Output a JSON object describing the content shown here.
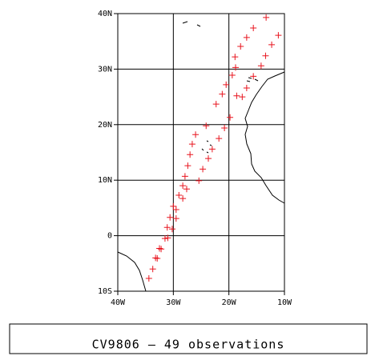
{
  "chart_data": {
    "type": "scatter",
    "title": "CV9806 — 49 observations",
    "xlim": [
      -40,
      -10
    ],
    "ylim": [
      -10,
      40
    ],
    "xticks": [
      {
        "value": -40,
        "label": "40W"
      },
      {
        "value": -30,
        "label": "30W"
      },
      {
        "value": -20,
        "label": "20W"
      },
      {
        "value": -10,
        "label": "10W"
      }
    ],
    "yticks": [
      {
        "value": -10,
        "label": "10S"
      },
      {
        "value": 0,
        "label": "0"
      },
      {
        "value": 10,
        "label": "10N"
      },
      {
        "value": 20,
        "label": "20N"
      },
      {
        "value": 30,
        "label": "30N"
      },
      {
        "value": 40,
        "label": "40N"
      }
    ],
    "grid": true,
    "color": "#e8141e",
    "x": [
      -13.3,
      -11.1,
      -15.6,
      -12.3,
      -16.8,
      -13.4,
      -17.9,
      -14.2,
      -18.9,
      -15.6,
      -18.8,
      -19.4,
      -16.8,
      -20.5,
      -18.6,
      -17.6,
      -21.2,
      -22.3,
      -19.8,
      -24.1,
      -20.8,
      -21.8,
      -26.0,
      -23.0,
      -26.6,
      -23.7,
      -27.0,
      -24.7,
      -27.4,
      -25.4,
      -27.9,
      -27.6,
      -28.3,
      -28.3,
      -29.0,
      -29.5,
      -30.0,
      -29.5,
      -30.6,
      -30.2,
      -31.1,
      -31.5,
      -31.0,
      -32.2,
      -32.5,
      -32.9,
      -33.2,
      -33.7,
      -34.4
    ],
    "values": [
      39.3,
      36.1,
      37.4,
      34.4,
      35.7,
      32.4,
      34.1,
      30.6,
      32.2,
      28.7,
      30.3,
      28.9,
      26.6,
      27.2,
      25.2,
      25.0,
      25.5,
      23.7,
      21.3,
      19.8,
      19.4,
      17.5,
      18.2,
      15.6,
      16.5,
      13.9,
      14.6,
      12.0,
      12.6,
      9.9,
      10.7,
      8.4,
      9.0,
      6.7,
      7.3,
      4.7,
      5.3,
      3.1,
      3.3,
      1.2,
      1.5,
      -0.5,
      -0.4,
      -2.4,
      -2.3,
      -4.1,
      -4.0,
      -6.0,
      -7.7
    ]
  }
}
